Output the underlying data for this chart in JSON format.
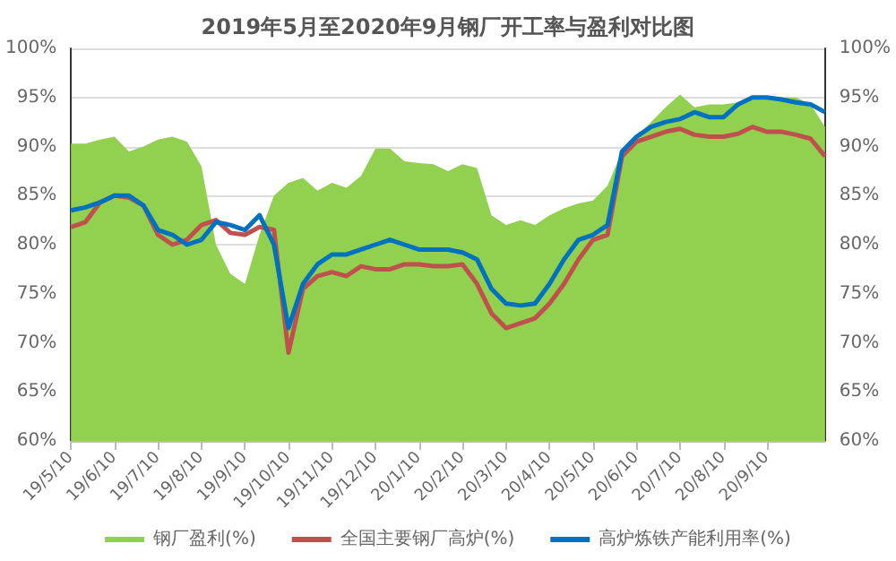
{
  "chart_data": {
    "type": "line",
    "title": "2019年5月至2020年9月钢厂开工率与盈利对比图",
    "categories": [
      "19/5/10",
      null,
      null,
      "19/6/10",
      null,
      null,
      "19/7/10",
      null,
      null,
      "19/8/10",
      null,
      null,
      "19/9/10",
      null,
      null,
      "19/10/10",
      null,
      null,
      "19/11/10",
      null,
      null,
      "19/12/10",
      null,
      null,
      "20/1/10",
      null,
      null,
      "20/2/10",
      null,
      null,
      "20/3/10",
      null,
      null,
      "20/4/10",
      null,
      null,
      "20/5/10",
      null,
      null,
      "20/6/10",
      null,
      null,
      "20/7/10",
      null,
      null,
      "20/8/10",
      null,
      null,
      "20/9/10",
      null,
      null,
      null,
      null
    ],
    "series": [
      {
        "name": "钢厂盈利(%)",
        "type": "area",
        "color": "#92d050",
        "values": [
          90.3,
          90.3,
          90.7,
          91,
          89.5,
          90,
          90.7,
          91,
          90.5,
          88,
          80,
          77,
          76,
          81,
          85,
          86.3,
          86.8,
          85.5,
          86.3,
          85.8,
          87,
          89.8,
          89.8,
          88.5,
          88.3,
          88.2,
          87.5,
          88.2,
          87.8,
          83,
          82,
          82.5,
          82,
          83,
          83.7,
          84.2,
          84.5,
          86,
          89.5,
          91,
          92.5,
          94,
          95.3,
          94,
          94.3,
          94.3,
          94.5,
          95,
          95,
          95,
          95,
          94.3,
          92
        ]
      },
      {
        "name": "全国主要钢厂高炉(%)",
        "color": "#c0504d",
        "values": [
          81.8,
          82.3,
          84.3,
          85,
          84.8,
          84,
          81,
          80,
          80.5,
          82,
          82.5,
          81.2,
          81,
          81.8,
          81.5,
          69,
          75.5,
          76.8,
          77.2,
          76.8,
          77.8,
          77.5,
          77.5,
          78,
          78,
          77.8,
          77.8,
          78,
          76,
          73,
          71.5,
          72,
          72.5,
          74,
          76,
          78.5,
          80.5,
          81,
          89,
          90.5,
          91,
          91.5,
          91.8,
          91.2,
          91,
          91,
          91.3,
          92,
          91.5,
          91.5,
          91.2,
          90.8,
          89
        ]
      },
      {
        "name": "高炉炼铁产能利用率(%)",
        "color": "#0070c0",
        "values": [
          83.5,
          83.8,
          84.3,
          85,
          85,
          84,
          81.5,
          81,
          80,
          80.5,
          82.3,
          82,
          81.5,
          83,
          80,
          71.5,
          76,
          78,
          79,
          79,
          79.5,
          80,
          80.5,
          80,
          79.5,
          79.5,
          79.5,
          79.2,
          78.5,
          75.5,
          74,
          73.8,
          74,
          76,
          78.5,
          80.5,
          81,
          82,
          89.5,
          91,
          92,
          92.5,
          92.8,
          93.5,
          93,
          93,
          94.3,
          95,
          95,
          94.8,
          94.5,
          94.3,
          93.5
        ]
      }
    ],
    "ylim": [
      60,
      100
    ],
    "yticks": [
      {
        "value": 60,
        "label": "60%"
      },
      {
        "value": 65,
        "label": "65%"
      },
      {
        "value": 70,
        "label": "70%"
      },
      {
        "value": 75,
        "label": "75%"
      },
      {
        "value": 80,
        "label": "80%"
      },
      {
        "value": 85,
        "label": "85%"
      },
      {
        "value": 90,
        "label": "90%"
      },
      {
        "value": 95,
        "label": "95%"
      },
      {
        "value": 100,
        "label": "100%"
      }
    ],
    "y2lim": [
      60,
      100
    ],
    "y2ticks": [
      {
        "value": 60,
        "label": "60%"
      },
      {
        "value": 65,
        "label": "65%"
      },
      {
        "value": 70,
        "label": "70%"
      },
      {
        "value": 75,
        "label": "75%"
      },
      {
        "value": 80,
        "label": "80%"
      },
      {
        "value": 85,
        "label": "85%"
      },
      {
        "value": 90,
        "label": "90%"
      },
      {
        "value": 95,
        "label": "95%"
      },
      {
        "value": 100,
        "label": "100%"
      }
    ],
    "grid": "y",
    "legend": "bottom",
    "marker": "none",
    "line_style": "solid"
  }
}
